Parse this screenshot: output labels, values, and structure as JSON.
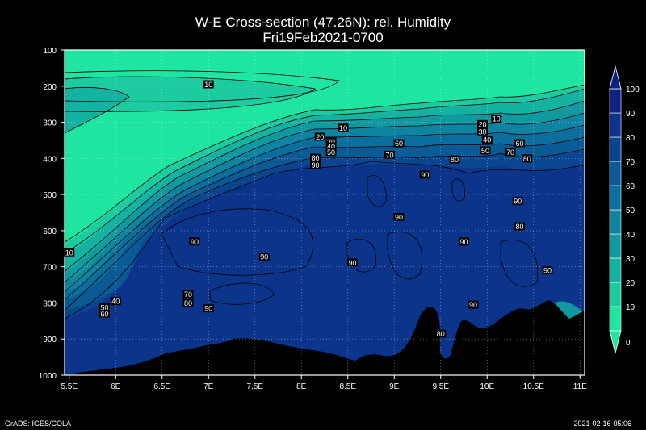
{
  "chart_data": {
    "type": "heatmap",
    "title": "W-E Cross-section (47.26N): rel. Humidity",
    "subtitle": "Fri19Feb2021-0700",
    "xlabel": "",
    "ylabel": "",
    "x_ticks": [
      "5.5E",
      "6E",
      "6.5E",
      "7E",
      "7.5E",
      "8E",
      "8.5E",
      "9E",
      "9.5E",
      "10E",
      "10.5E",
      "11E"
    ],
    "y_ticks": [
      "100",
      "200",
      "300",
      "400",
      "500",
      "600",
      "700",
      "800",
      "900",
      "1000"
    ],
    "xlim": [
      5.45,
      11.05
    ],
    "ylim": [
      100,
      1000
    ],
    "grid": true,
    "colorbar": {
      "levels": [
        "0",
        "10",
        "20",
        "30",
        "40",
        "50",
        "60",
        "70",
        "80",
        "90",
        "100"
      ],
      "colors": [
        "#1ee6a0",
        "#1ccca0",
        "#14b2a0",
        "#109aa0",
        "#0e84a0",
        "#0c6e9c",
        "#0a5a96",
        "#0a4690",
        "#0c348a",
        "#0e2080"
      ],
      "placement": "right"
    },
    "contour_labels": [
      {
        "value": "10",
        "lon": 7.0,
        "p": 195
      },
      {
        "value": "10",
        "lon": 8.45,
        "p": 315
      },
      {
        "value": "10",
        "lon": 10.1,
        "p": 290
      },
      {
        "value": "10",
        "lon": 5.5,
        "p": 660
      },
      {
        "value": "20",
        "lon": 8.2,
        "p": 340
      },
      {
        "value": "20",
        "lon": 9.95,
        "p": 305
      },
      {
        "value": "30",
        "lon": 8.32,
        "p": 353
      },
      {
        "value": "30",
        "lon": 9.95,
        "p": 325
      },
      {
        "value": "40",
        "lon": 8.32,
        "p": 367
      },
      {
        "value": "40",
        "lon": 10.0,
        "p": 348
      },
      {
        "value": "40",
        "lon": 6.0,
        "p": 795
      },
      {
        "value": "50",
        "lon": 8.32,
        "p": 382
      },
      {
        "value": "50",
        "lon": 9.98,
        "p": 378
      },
      {
        "value": "50",
        "lon": 5.88,
        "p": 812
      },
      {
        "value": "60",
        "lon": 9.05,
        "p": 358
      },
      {
        "value": "60",
        "lon": 10.35,
        "p": 358
      },
      {
        "value": "60",
        "lon": 5.88,
        "p": 830
      },
      {
        "value": "70",
        "lon": 8.95,
        "p": 390
      },
      {
        "value": "70",
        "lon": 10.25,
        "p": 382
      },
      {
        "value": "70",
        "lon": 6.78,
        "p": 775
      },
      {
        "value": "80",
        "lon": 8.15,
        "p": 398
      },
      {
        "value": "80",
        "lon": 9.65,
        "p": 403
      },
      {
        "value": "80",
        "lon": 10.43,
        "p": 400
      },
      {
        "value": "80",
        "lon": 10.35,
        "p": 588
      },
      {
        "value": "80",
        "lon": 6.78,
        "p": 800
      },
      {
        "value": "80",
        "lon": 9.5,
        "p": 885
      },
      {
        "value": "90",
        "lon": 8.15,
        "p": 418
      },
      {
        "value": "90",
        "lon": 9.33,
        "p": 445
      },
      {
        "value": "90",
        "lon": 10.33,
        "p": 518
      },
      {
        "value": "90",
        "lon": 9.05,
        "p": 562
      },
      {
        "value": "90",
        "lon": 6.85,
        "p": 630
      },
      {
        "value": "90",
        "lon": 7.6,
        "p": 672
      },
      {
        "value": "90",
        "lon": 8.55,
        "p": 688
      },
      {
        "value": "90",
        "lon": 9.75,
        "p": 630
      },
      {
        "value": "90",
        "lon": 10.65,
        "p": 710
      },
      {
        "value": "90",
        "lon": 9.85,
        "p": 805
      },
      {
        "value": "90",
        "lon": 7.0,
        "p": 815
      }
    ]
  },
  "footer": {
    "left": "GrADS: IGES/COLA",
    "right": "2021-02-16-05:06"
  }
}
